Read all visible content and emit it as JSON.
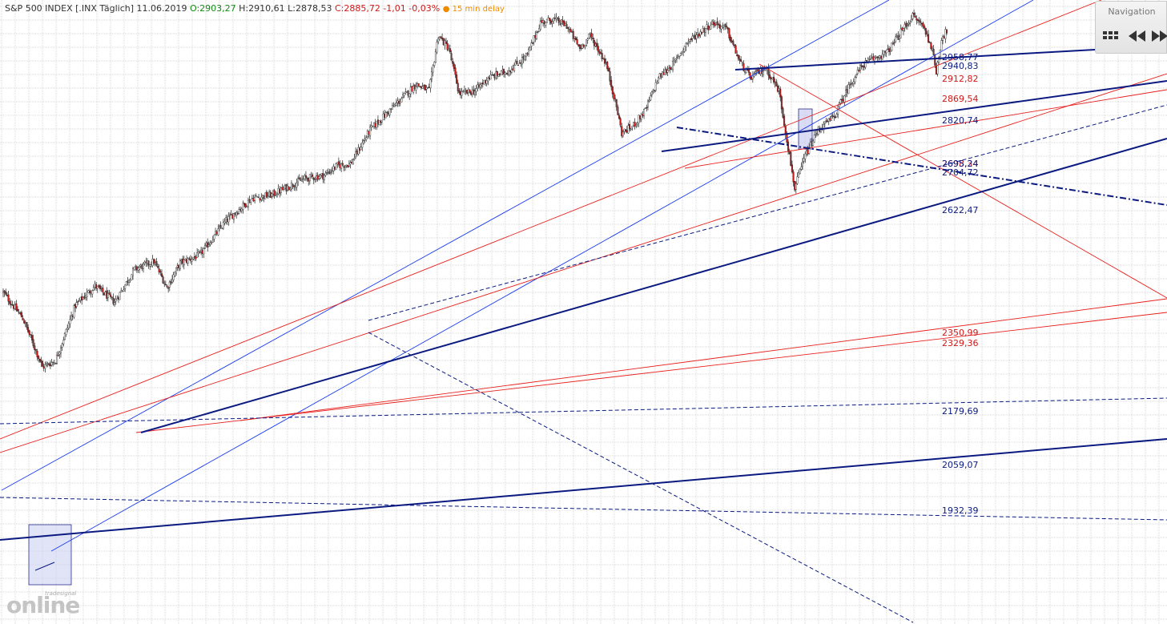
{
  "header": {
    "symbol": "S&P 500 INDEX",
    "exchange": "[.INX Täglich]",
    "date": "11.06.2019",
    "open": "O:2903,27",
    "high": "H:2910,61",
    "low": "L:2878,53",
    "close": "C:2885,72",
    "change": "-1,01",
    "change_pct": "-0,03%",
    "delay": "15 min delay"
  },
  "navigation": {
    "title": "Navigation",
    "buttons": [
      "grid-icon",
      "rewind-icon",
      "fast-forward-icon"
    ]
  },
  "logo": {
    "brand_small": "tradesignal",
    "brand_word": "online"
  },
  "colors": {
    "channel_blue": "#1a3df0",
    "navy": "#0a1a80",
    "red": "#e8201c",
    "candle_up": "#ffffff",
    "candle_down": "#c41a1a",
    "grid": "#d9d9d9",
    "box_fill": "#c9cdf0"
  },
  "chart_data": {
    "type": "candlestick",
    "title": "S&P 500 INDEX [.INX Täglich]",
    "xlabel": "",
    "ylabel": "",
    "ylim": [
      1780,
      3100
    ],
    "approx_close_path": [
      [
        0,
        2080
      ],
      [
        15,
        2000
      ],
      [
        30,
        1850
      ],
      [
        40,
        1870
      ],
      [
        55,
        2040
      ],
      [
        70,
        2100
      ],
      [
        85,
        2050
      ],
      [
        100,
        2150
      ],
      [
        115,
        2175
      ],
      [
        125,
        2095
      ],
      [
        135,
        2170
      ],
      [
        150,
        2195
      ],
      [
        170,
        2300
      ],
      [
        190,
        2370
      ],
      [
        205,
        2380
      ],
      [
        215,
        2400
      ],
      [
        230,
        2430
      ],
      [
        245,
        2440
      ],
      [
        255,
        2470
      ],
      [
        265,
        2475
      ],
      [
        280,
        2580
      ],
      [
        295,
        2640
      ],
      [
        315,
        2720
      ],
      [
        325,
        2700
      ],
      [
        332,
        2870
      ],
      [
        340,
        2830
      ],
      [
        348,
        2690
      ],
      [
        360,
        2700
      ],
      [
        370,
        2740
      ],
      [
        385,
        2760
      ],
      [
        400,
        2810
      ],
      [
        410,
        2910
      ],
      [
        420,
        2920
      ],
      [
        430,
        2900
      ],
      [
        440,
        2830
      ],
      [
        448,
        2870
      ],
      [
        460,
        2785
      ],
      [
        468,
        2650
      ],
      [
        472,
        2570
      ],
      [
        480,
        2590
      ],
      [
        490,
        2640
      ],
      [
        500,
        2740
      ],
      [
        512,
        2785
      ],
      [
        522,
        2850
      ],
      [
        535,
        2890
      ],
      [
        542,
        2910
      ],
      [
        552,
        2890
      ],
      [
        562,
        2790
      ],
      [
        570,
        2740
      ],
      [
        582,
        2770
      ],
      [
        592,
        2700
      ],
      [
        604,
        2400
      ],
      [
        612,
        2500
      ],
      [
        622,
        2580
      ],
      [
        634,
        2620
      ],
      [
        646,
        2720
      ],
      [
        656,
        2780
      ],
      [
        665,
        2800
      ],
      [
        675,
        2820
      ],
      [
        685,
        2880
      ],
      [
        694,
        2930
      ],
      [
        702,
        2900
      ],
      [
        708,
        2840
      ],
      [
        712,
        2760
      ],
      [
        716,
        2860
      ],
      [
        720,
        2885
      ]
    ],
    "price_levels": [
      {
        "value": "2958,77",
        "color": "navy"
      },
      {
        "value": "2940,83",
        "color": "navy"
      },
      {
        "value": "2912,82",
        "color": "red"
      },
      {
        "value": "2869,54",
        "color": "red"
      },
      {
        "value": "2820,74",
        "color": "navy"
      },
      {
        "value": "2698,34",
        "color": "red"
      },
      {
        "value": "2695,24",
        "color": "navy"
      },
      {
        "value": "2704,72",
        "color": "navy"
      },
      {
        "value": "2622,47",
        "color": "navy"
      },
      {
        "value": "2350,99",
        "color": "red"
      },
      {
        "value": "2329,36",
        "color": "red"
      },
      {
        "value": "2179,69",
        "color": "navy"
      },
      {
        "value": "2059,07",
        "color": "navy"
      },
      {
        "value": "1932,39",
        "color": "navy"
      }
    ]
  }
}
